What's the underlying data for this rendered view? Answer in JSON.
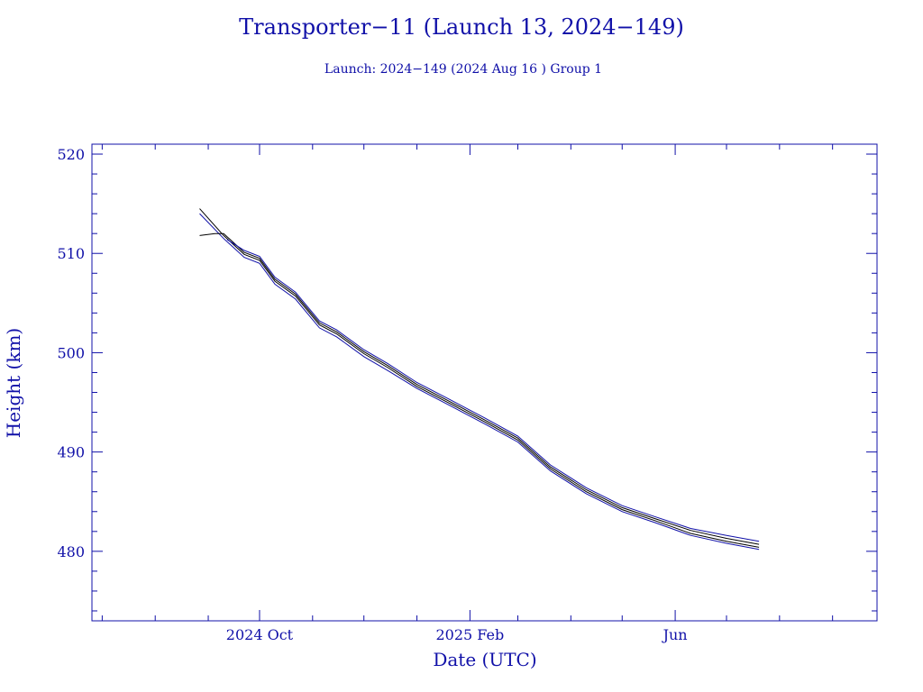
{
  "chart_data": {
    "type": "line",
    "title": "Transporter−11 (Launch 13, 2024−149)",
    "subtitle": "Launch: 2024−149  (2024 Aug 16 )  Group 1",
    "xlabel": "Date (UTC)",
    "ylabel": "Height (km)",
    "xlim": [
      "2024-06-25",
      "2025-09-27"
    ],
    "ylim": [
      473,
      521
    ],
    "x_major_ticks": [
      {
        "date": "2024-10-01",
        "label": "2024 Oct"
      },
      {
        "date": "2025-02-01",
        "label": "2025 Feb"
      },
      {
        "date": "2025-06-01",
        "label": "Jun"
      }
    ],
    "x_minor_ticks": [
      "2024-07-01",
      "2024-08-01",
      "2024-09-01",
      "2024-11-01",
      "2024-12-01",
      "2025-01-01",
      "2025-03-01",
      "2025-04-01",
      "2025-05-01",
      "2025-07-01",
      "2025-08-01",
      "2025-09-01"
    ],
    "y_ticks": [
      480,
      490,
      500,
      510,
      520
    ],
    "y_minor_step": 2,
    "grid": false,
    "colors": {
      "axes": "#1010a8",
      "text": "#1010a8",
      "line_a": "#000000",
      "line_b": "#1010a8"
    },
    "series": [
      {
        "values": [
          [
            "2024-08-27",
            514.5
          ],
          [
            "2024-09-10",
            511.8
          ],
          [
            "2024-09-22",
            509.9
          ],
          [
            "2024-10-01",
            509.3
          ],
          [
            "2024-10-10",
            507.2
          ],
          [
            "2024-10-22",
            505.7
          ],
          [
            "2024-11-05",
            502.8
          ],
          [
            "2024-11-15",
            501.9
          ],
          [
            "2024-12-01",
            499.9
          ],
          [
            "2024-12-15",
            498.5
          ],
          [
            "2025-01-01",
            496.6
          ],
          [
            "2025-01-20",
            494.9
          ],
          [
            "2025-02-10",
            493.0
          ],
          [
            "2025-03-01",
            491.2
          ],
          [
            "2025-03-20",
            488.3
          ],
          [
            "2025-04-10",
            486.0
          ],
          [
            "2025-05-01",
            484.2
          ],
          [
            "2025-05-20",
            483.1
          ],
          [
            "2025-06-10",
            481.8
          ],
          [
            "2025-07-01",
            481.0
          ],
          [
            "2025-07-20",
            480.4
          ]
        ]
      },
      {
        "values": [
          [
            "2024-08-27",
            514.0
          ],
          [
            "2024-09-10",
            511.5
          ],
          [
            "2024-09-22",
            509.6
          ],
          [
            "2024-10-01",
            509.0
          ],
          [
            "2024-10-10",
            506.9
          ],
          [
            "2024-10-22",
            505.4
          ],
          [
            "2024-11-05",
            502.5
          ],
          [
            "2024-11-15",
            501.6
          ],
          [
            "2024-12-01",
            499.6
          ],
          [
            "2024-12-15",
            498.2
          ],
          [
            "2025-01-01",
            496.4
          ],
          [
            "2025-01-20",
            494.7
          ],
          [
            "2025-02-10",
            492.8
          ],
          [
            "2025-03-01",
            491.0
          ],
          [
            "2025-03-20",
            488.1
          ],
          [
            "2025-04-10",
            485.8
          ],
          [
            "2025-05-01",
            484.0
          ],
          [
            "2025-05-20",
            482.9
          ],
          [
            "2025-06-10",
            481.6
          ],
          [
            "2025-07-01",
            480.8
          ],
          [
            "2025-07-20",
            480.2
          ]
        ]
      },
      {
        "values": [
          [
            "2024-08-27",
            511.8
          ],
          [
            "2024-09-05",
            512.0
          ],
          [
            "2024-09-10",
            512.0
          ],
          [
            "2024-09-22",
            510.1
          ],
          [
            "2024-10-01",
            509.5
          ],
          [
            "2024-10-10",
            507.4
          ],
          [
            "2024-10-22",
            505.9
          ],
          [
            "2024-11-05",
            503.0
          ],
          [
            "2024-11-15",
            502.1
          ],
          [
            "2024-12-01",
            500.1
          ],
          [
            "2024-12-15",
            498.7
          ],
          [
            "2025-01-01",
            496.8
          ],
          [
            "2025-01-20",
            495.1
          ],
          [
            "2025-02-10",
            493.2
          ],
          [
            "2025-03-01",
            491.4
          ],
          [
            "2025-03-20",
            488.5
          ],
          [
            "2025-04-10",
            486.2
          ],
          [
            "2025-05-01",
            484.4
          ],
          [
            "2025-05-20",
            483.3
          ],
          [
            "2025-06-10",
            482.1
          ],
          [
            "2025-07-01",
            481.3
          ],
          [
            "2025-07-20",
            480.7
          ]
        ]
      },
      {
        "values": [
          [
            "2024-09-12",
            511.4
          ],
          [
            "2024-09-22",
            510.3
          ],
          [
            "2024-10-01",
            509.7
          ],
          [
            "2024-10-10",
            507.6
          ],
          [
            "2024-10-22",
            506.1
          ],
          [
            "2024-11-05",
            503.2
          ],
          [
            "2024-11-15",
            502.3
          ],
          [
            "2024-12-01",
            500.3
          ],
          [
            "2024-12-15",
            498.9
          ],
          [
            "2025-01-01",
            497.0
          ],
          [
            "2025-01-20",
            495.3
          ],
          [
            "2025-02-10",
            493.4
          ],
          [
            "2025-03-01",
            491.6
          ],
          [
            "2025-03-20",
            488.7
          ],
          [
            "2025-04-10",
            486.4
          ],
          [
            "2025-05-01",
            484.6
          ],
          [
            "2025-05-20",
            483.5
          ],
          [
            "2025-06-10",
            482.3
          ],
          [
            "2025-07-01",
            481.6
          ],
          [
            "2025-07-20",
            481.0
          ]
        ]
      }
    ]
  }
}
